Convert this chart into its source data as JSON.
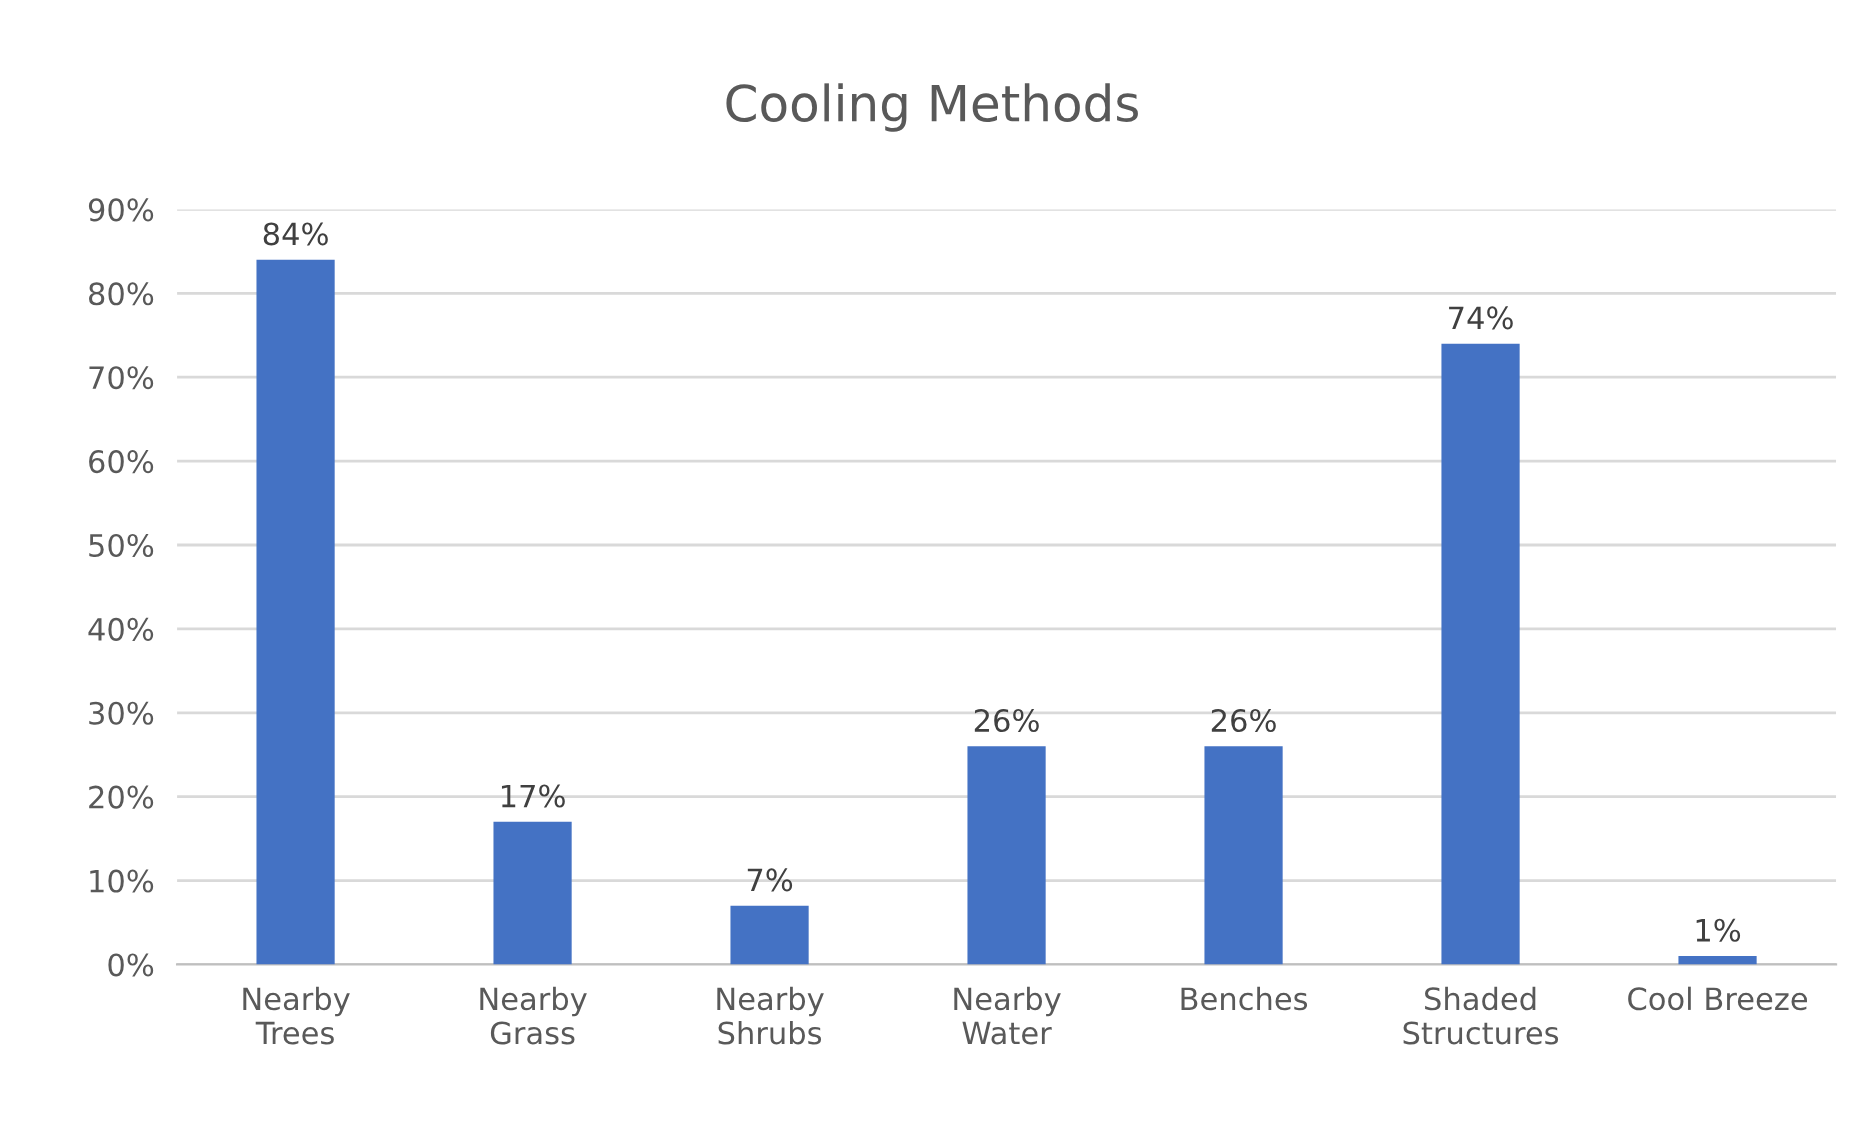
{
  "chart_data": {
    "type": "bar",
    "title": "Cooling Methods",
    "categories": [
      "Nearby\nTrees",
      "Nearby\nGrass",
      "Nearby\nShrubs",
      "Nearby\nWater",
      "Benches",
      "Shaded\nStructures",
      "Cool Breeze"
    ],
    "values": [
      84,
      17,
      7,
      26,
      26,
      74,
      1
    ],
    "value_labels": [
      "84%",
      "17%",
      "7%",
      "26%",
      "26%",
      "74%",
      "1%"
    ],
    "color": "#4472c4",
    "ylim": [
      0,
      90
    ],
    "yticks": [
      {
        "value": 0,
        "label": "0%"
      },
      {
        "value": 10,
        "label": "10%"
      },
      {
        "value": 20,
        "label": "20%"
      },
      {
        "value": 30,
        "label": "30%"
      },
      {
        "value": 40,
        "label": "40%"
      },
      {
        "value": 50,
        "label": "50%"
      },
      {
        "value": 60,
        "label": "60%"
      },
      {
        "value": 70,
        "label": "70%"
      },
      {
        "value": 80,
        "label": "80%"
      },
      {
        "value": 90,
        "label": "90%"
      }
    ],
    "grid": "y",
    "legend": false
  }
}
